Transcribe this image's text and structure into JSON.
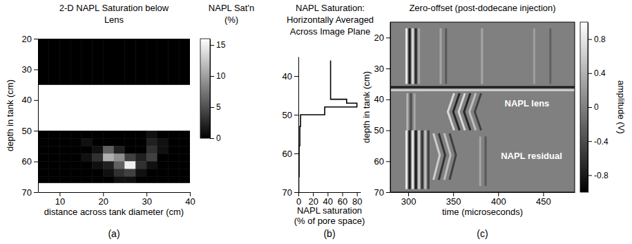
{
  "chart_data": [
    {
      "type": "heatmap",
      "title": "2-D NAPL Saturation below Lens",
      "panel_label": "(a)",
      "x_label": "distance across tank diameter (cm)",
      "y_label": "depth in tank (cm)",
      "xlim": [
        5,
        40
      ],
      "xticks": [
        10,
        20,
        30,
        40
      ],
      "ylim": [
        20,
        70
      ],
      "yticks": [
        20,
        30,
        40,
        50,
        60,
        70
      ],
      "x_edges": [
        5,
        7.5,
        10,
        12.5,
        15,
        17.5,
        20,
        22.5,
        25,
        27.5,
        30,
        32.5,
        35,
        37.5,
        40
      ],
      "y_edges": [
        20,
        35,
        50,
        52.5,
        55,
        57.5,
        60,
        62.5,
        65,
        67
      ],
      "cells": [
        [
          0,
          0,
          0,
          0,
          0,
          0,
          0,
          0,
          0,
          0,
          0,
          0,
          0,
          0
        ],
        [
          null,
          null,
          null,
          null,
          null,
          null,
          null,
          null,
          null,
          null,
          null,
          null,
          null,
          null
        ],
        [
          0,
          0,
          0,
          0,
          0,
          0,
          0,
          0,
          0,
          0,
          1,
          0,
          0,
          0
        ],
        [
          0,
          0,
          0,
          0,
          1,
          0,
          0,
          0,
          0,
          0,
          2,
          1,
          0,
          0
        ],
        [
          0,
          0,
          0,
          0,
          0,
          1,
          6,
          2,
          0,
          0,
          3,
          1,
          0,
          0
        ],
        [
          0,
          0,
          0,
          0,
          1,
          3,
          11,
          9,
          4,
          2,
          4,
          0,
          0,
          0
        ],
        [
          0,
          0,
          0,
          0,
          0,
          1,
          2,
          6,
          15,
          3,
          1,
          0,
          0,
          0
        ],
        [
          0,
          0,
          0,
          0,
          0,
          0,
          1,
          3,
          4,
          1,
          0,
          0,
          0,
          0
        ],
        [
          0,
          0,
          0,
          0,
          0,
          0,
          0,
          1,
          1,
          0,
          0,
          0,
          0,
          0
        ]
      ],
      "colorbar": {
        "title": "NAPL Sat'n (%)",
        "lim": [
          0,
          16
        ],
        "ticks": [
          0,
          5,
          10,
          15
        ]
      }
    },
    {
      "type": "line",
      "title": "NAPL Saturation: Horizontally Averaged Across Image Plane",
      "panel_label": "(b)",
      "x_label": "NAPL saturation (% of pore space)",
      "xlim": [
        0,
        85
      ],
      "xticks": [
        0,
        20,
        40,
        60,
        80
      ],
      "ylim": [
        35,
        70
      ],
      "yticks": [
        40,
        50,
        60,
        70
      ],
      "color": "#000000",
      "x": [
        44,
        44,
        66,
        66,
        80,
        80,
        36,
        36,
        3,
        3,
        2,
        2,
        1,
        1,
        0.5,
        0.5
      ],
      "values": [
        36,
        46,
        46,
        47,
        47,
        48,
        48,
        50,
        50,
        53,
        53,
        58,
        58,
        66,
        66,
        70
      ]
    },
    {
      "type": "seismic",
      "title": "Zero-offset (post-dodecane injection)",
      "panel_label": "(c)",
      "x_label": "time (microseconds)",
      "y_label": "depth in tank (cm)",
      "xlim": [
        280,
        485
      ],
      "xticks": [
        300,
        350,
        400,
        450
      ],
      "ylim": [
        15,
        70
      ],
      "yticks": [
        20,
        30,
        40,
        50,
        60,
        70
      ],
      "annotations": [
        "NAPL lens",
        "NAPL residual"
      ],
      "events": [
        {
          "time": [
            280,
            485
          ],
          "depth": [
            36,
            36
          ],
          "amplitude": -0.8
        },
        {
          "time": [
            280,
            485
          ],
          "depth": [
            37,
            37
          ],
          "amplitude": 0.6
        },
        {
          "time": [
            298,
            298
          ],
          "depth": [
            17,
            35
          ],
          "amplitude": 0.8
        },
        {
          "time": [
            301.5,
            301.5
          ],
          "depth": [
            17,
            35
          ],
          "amplitude": -0.8
        },
        {
          "time": [
            305,
            305
          ],
          "depth": [
            17,
            35
          ],
          "amplitude": 0.7
        },
        {
          "time": [
            308.5,
            308.5
          ],
          "depth": [
            17,
            35
          ],
          "amplitude": -0.7
        },
        {
          "time": [
            312,
            312
          ],
          "depth": [
            17,
            35
          ],
          "amplitude": 0.3
        },
        {
          "time": [
            336,
            336
          ],
          "depth": [
            17,
            35
          ],
          "amplitude": 0.3
        },
        {
          "time": [
            342,
            342
          ],
          "depth": [
            17,
            35
          ],
          "amplitude": -0.3
        },
        {
          "time": [
            382,
            382
          ],
          "depth": [
            17,
            35
          ],
          "amplitude": 0.3
        },
        {
          "time": [
            440,
            440
          ],
          "depth": [
            17,
            35
          ],
          "amplitude": 0.25
        },
        {
          "time": [
            458,
            458
          ],
          "depth": [
            17,
            35
          ],
          "amplitude": -0.25
        },
        {
          "time": [
            299,
            299
          ],
          "depth": [
            38,
            50
          ],
          "amplitude": 0.4
        },
        {
          "time": [
            303,
            303
          ],
          "depth": [
            38,
            50
          ],
          "amplitude": -0.4
        },
        {
          "time": [
            307,
            307
          ],
          "depth": [
            38,
            50
          ],
          "amplitude": 0.3
        },
        {
          "time": [
            351,
            344,
            351
          ],
          "depth": [
            38,
            44,
            50
          ],
          "amplitude": 0.7
        },
        {
          "time": [
            357,
            350,
            357
          ],
          "depth": [
            38,
            44,
            50
          ],
          "amplitude": -0.7
        },
        {
          "time": [
            363,
            356,
            363
          ],
          "depth": [
            38,
            44,
            50
          ],
          "amplitude": 0.7
        },
        {
          "time": [
            369,
            362,
            369
          ],
          "depth": [
            38,
            44,
            50
          ],
          "amplitude": -0.7
        },
        {
          "time": [
            375,
            368,
            375
          ],
          "depth": [
            38,
            44,
            50
          ],
          "amplitude": 0.5
        },
        {
          "time": [
            381,
            374,
            381
          ],
          "depth": [
            38,
            44,
            50
          ],
          "amplitude": -0.5
        },
        {
          "time": [
            298,
            298
          ],
          "depth": [
            50,
            69
          ],
          "amplitude": 0.8
        },
        {
          "time": [
            301.5,
            301.5
          ],
          "depth": [
            50,
            69
          ],
          "amplitude": -0.8
        },
        {
          "time": [
            305,
            305
          ],
          "depth": [
            50,
            69
          ],
          "amplitude": 0.8
        },
        {
          "time": [
            308.5,
            308.5
          ],
          "depth": [
            50,
            69
          ],
          "amplitude": -0.8
        },
        {
          "time": [
            312,
            312
          ],
          "depth": [
            50,
            69
          ],
          "amplitude": 0.6
        },
        {
          "time": [
            315.5,
            315.5
          ],
          "depth": [
            50,
            69
          ],
          "amplitude": -0.6
        },
        {
          "time": [
            319,
            319
          ],
          "depth": [
            50,
            69
          ],
          "amplitude": 0.5
        },
        {
          "time": [
            322.5,
            322.5
          ],
          "depth": [
            50,
            69
          ],
          "amplitude": -0.5
        },
        {
          "time": [
            328,
            335,
            328
          ],
          "depth": [
            51,
            58,
            66
          ],
          "amplitude": 0.6
        },
        {
          "time": [
            334,
            341,
            334
          ],
          "depth": [
            51,
            58,
            66
          ],
          "amplitude": -0.6
        },
        {
          "time": [
            340,
            347,
            340
          ],
          "depth": [
            51,
            58,
            66
          ],
          "amplitude": 0.5
        },
        {
          "time": [
            346,
            353,
            346
          ],
          "depth": [
            51,
            58,
            66
          ],
          "amplitude": -0.5
        },
        {
          "time": [
            380,
            380
          ],
          "depth": [
            52,
            68
          ],
          "amplitude": 0.3
        },
        {
          "time": [
            386,
            386
          ],
          "depth": [
            52,
            68
          ],
          "amplitude": -0.3
        }
      ],
      "colorbar": {
        "title": "amplitude (V)",
        "lim": [
          -1,
          1
        ],
        "ticks": [
          0.8,
          0.4,
          0,
          -0.4,
          -0.8
        ]
      }
    }
  ]
}
